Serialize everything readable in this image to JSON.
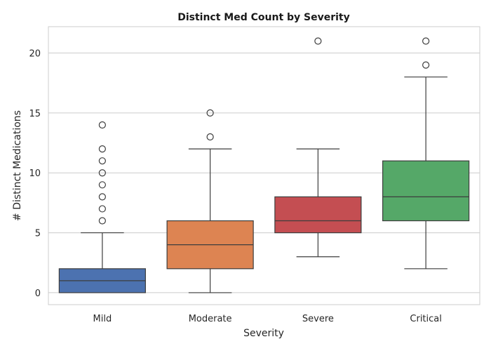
{
  "chart_data": {
    "type": "box",
    "title": "Distinct Med Count by Severity",
    "xlabel": "Severity",
    "ylabel": "# Distinct Medications",
    "ylim": [
      -1.0,
      22.2
    ],
    "yticks": [
      0,
      5,
      10,
      15,
      20
    ],
    "grid": "horizontal",
    "categories": [
      "Mild",
      "Moderate",
      "Severe",
      "Critical"
    ],
    "colors": [
      "#4c72b0",
      "#dd8452",
      "#c44e52",
      "#55a868"
    ],
    "boxes": [
      {
        "whisker_low": 0,
        "q1": 0,
        "median": 1,
        "q3": 2,
        "whisker_high": 5,
        "outliers": [
          6,
          7,
          8,
          9,
          10,
          11,
          12,
          14
        ]
      },
      {
        "whisker_low": 0,
        "q1": 2,
        "median": 4,
        "q3": 6,
        "whisker_high": 12,
        "outliers": [
          13,
          15
        ]
      },
      {
        "whisker_low": 3,
        "q1": 5,
        "median": 6,
        "q3": 8,
        "whisker_high": 12,
        "outliers": [
          21
        ]
      },
      {
        "whisker_low": 2,
        "q1": 6,
        "median": 8,
        "q3": 11,
        "whisker_high": 18,
        "outliers": [
          19,
          21
        ]
      }
    ]
  }
}
